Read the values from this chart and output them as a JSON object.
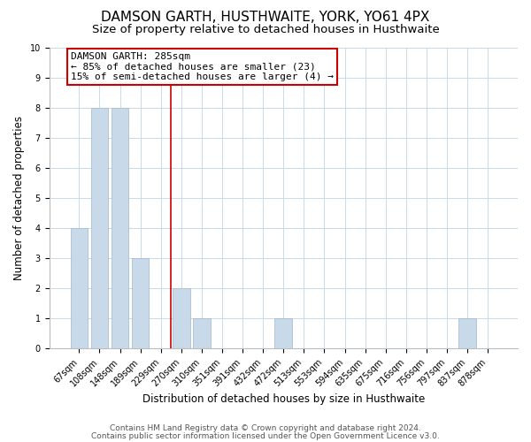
{
  "title": "DAMSON GARTH, HUSTHWAITE, YORK, YO61 4PX",
  "subtitle": "Size of property relative to detached houses in Husthwaite",
  "xlabel": "Distribution of detached houses by size in Husthwaite",
  "ylabel": "Number of detached properties",
  "bar_labels": [
    "67sqm",
    "108sqm",
    "148sqm",
    "189sqm",
    "229sqm",
    "270sqm",
    "310sqm",
    "351sqm",
    "391sqm",
    "432sqm",
    "472sqm",
    "513sqm",
    "553sqm",
    "594sqm",
    "635sqm",
    "675sqm",
    "716sqm",
    "756sqm",
    "797sqm",
    "837sqm",
    "878sqm"
  ],
  "bar_values": [
    4,
    8,
    8,
    3,
    0,
    2,
    1,
    0,
    0,
    0,
    1,
    0,
    0,
    0,
    0,
    0,
    0,
    0,
    0,
    1,
    0
  ],
  "bar_color": "#c8daea",
  "bar_edgecolor": "#a0b8cc",
  "vline_x": 4.5,
  "vline_color": "#cc0000",
  "annotation_title": "DAMSON GARTH: 285sqm",
  "annotation_line1": "← 85% of detached houses are smaller (23)",
  "annotation_line2": "15% of semi-detached houses are larger (4) →",
  "annotation_box_color": "#cc0000",
  "annotation_box_fill": "#ffffff",
  "ylim": [
    0,
    10
  ],
  "yticks": [
    0,
    1,
    2,
    3,
    4,
    5,
    6,
    7,
    8,
    9,
    10
  ],
  "footer1": "Contains HM Land Registry data © Crown copyright and database right 2024.",
  "footer2": "Contains public sector information licensed under the Open Government Licence v3.0.",
  "bg_color": "#ffffff",
  "grid_color": "#c8d9e8",
  "title_fontsize": 11,
  "subtitle_fontsize": 9.5,
  "axis_label_fontsize": 8.5,
  "tick_fontsize": 7,
  "footer_fontsize": 6.5,
  "annotation_fontsize": 8
}
